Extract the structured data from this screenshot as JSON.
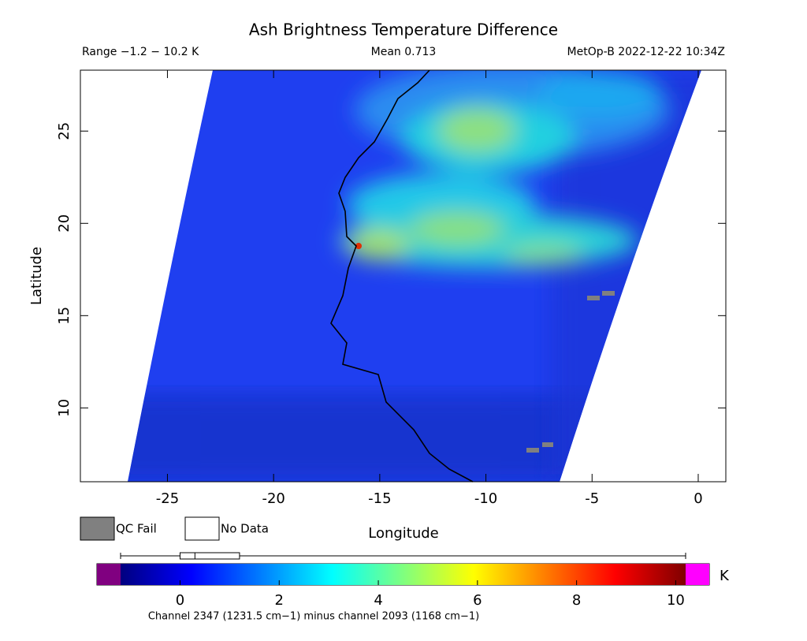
{
  "chart_data": {
    "type": "map",
    "title": "Ash Brightness Temperature Difference",
    "range_text": "Range −1.2 − 10.2 K",
    "mean_text": "Mean 0.713",
    "source_text": "MetOp-B 2022-12-22 10:34Z",
    "xlabel": "Longitude",
    "ylabel": "Latitude",
    "xlim": [
      -29.1,
      1.3
    ],
    "ylim": [
      6.0,
      28.3
    ],
    "xticks": [
      -25,
      -20,
      -15,
      -10,
      -5,
      0
    ],
    "yticks": [
      10,
      15,
      20,
      25
    ],
    "legend": [
      {
        "name": "QC Fail",
        "color": "#808080"
      },
      {
        "name": "No Data",
        "color": "#ffffff"
      }
    ],
    "colorbar": {
      "lim": [
        -1.2,
        10.2
      ],
      "ticks": [
        0,
        2,
        4,
        6,
        8,
        10
      ],
      "unit": "K",
      "under_color": "#800080",
      "over_color": "#ff00ff",
      "colormap": [
        "#00007f",
        "#0000ff",
        "#007fff",
        "#00ffff",
        "#7fff7f",
        "#ffff00",
        "#ff7f00",
        "#ff0000",
        "#7f0000"
      ],
      "box": {
        "whisker_low": -1.2,
        "q1": 0.0,
        "median": 0.3,
        "q3": 1.2,
        "whisker_high": 10.2
      }
    },
    "caption": "Channel 2347 (1231.5 cm−1) minus channel 2093 (1168 cm−1)"
  }
}
